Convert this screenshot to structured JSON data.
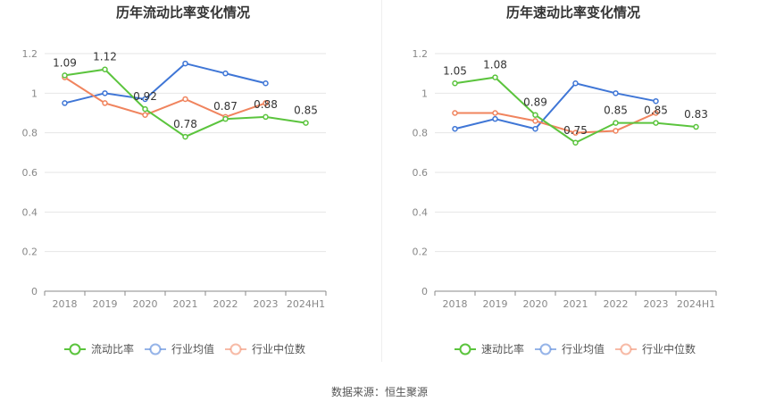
{
  "source": "数据来源：恒生聚源",
  "colors": {
    "company": "#5bc43d",
    "avg": "#3f76d6",
    "median": "#f0845e"
  },
  "chart_data": [
    {
      "type": "line",
      "title": "历年流动比率变化情况",
      "categories": [
        "2018",
        "2019",
        "2020",
        "2021",
        "2022",
        "2023",
        "2024H1"
      ],
      "ylim": [
        0,
        1.2
      ],
      "yticks": [
        "0",
        "0.2",
        "0.4",
        "0.6",
        "0.8",
        "1",
        "1.2"
      ],
      "grid": true,
      "legend_position": "bottom",
      "series": [
        {
          "name": "流动比率",
          "role": "company",
          "values": [
            1.09,
            1.12,
            0.92,
            0.78,
            0.87,
            0.88,
            0.85
          ],
          "labels": [
            "1.09",
            "1.12",
            "0.92",
            "0.78",
            "0.87",
            "0.88",
            "0.85"
          ]
        },
        {
          "name": "行业均值",
          "role": "avg",
          "values": [
            0.95,
            1.0,
            0.97,
            1.15,
            1.1,
            1.05,
            null
          ]
        },
        {
          "name": "行业中位数",
          "role": "median",
          "values": [
            1.08,
            0.95,
            0.89,
            0.97,
            0.88,
            0.95,
            null
          ]
        }
      ]
    },
    {
      "type": "line",
      "title": "历年速动比率变化情况",
      "categories": [
        "2018",
        "2019",
        "2020",
        "2021",
        "2022",
        "2023",
        "2024H1"
      ],
      "ylim": [
        0,
        1.2
      ],
      "yticks": [
        "0",
        "0.2",
        "0.4",
        "0.6",
        "0.8",
        "1",
        "1.2"
      ],
      "grid": true,
      "legend_position": "bottom",
      "series": [
        {
          "name": "速动比率",
          "role": "company",
          "values": [
            1.05,
            1.08,
            0.89,
            0.75,
            0.85,
            0.85,
            0.83
          ],
          "labels": [
            "1.05",
            "1.08",
            "0.89",
            "0.75",
            "0.85",
            "0.85",
            "0.83"
          ]
        },
        {
          "name": "行业均值",
          "role": "avg",
          "values": [
            0.82,
            0.87,
            0.82,
            1.05,
            1.0,
            0.96,
            null
          ]
        },
        {
          "name": "行业中位数",
          "role": "median",
          "values": [
            0.9,
            0.9,
            0.86,
            0.8,
            0.81,
            0.9,
            null
          ]
        }
      ]
    }
  ]
}
